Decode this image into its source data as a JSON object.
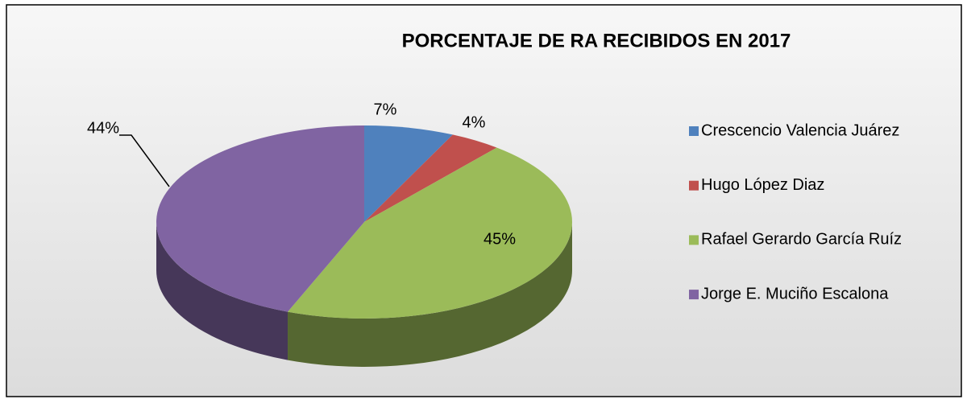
{
  "chart_data": {
    "type": "pie3d",
    "title": "PORCENTAJE DE RA RECIBIDOS EN 2017",
    "categories": [
      "Crescencio Valencia Juárez",
      "Hugo López Diaz",
      "Rafael Gerardo García Ruíz",
      "Jorge E. Muciño Escalona"
    ],
    "values": [
      7,
      4,
      45,
      44
    ],
    "value_labels": [
      "7%",
      "4%",
      "45%",
      "44%"
    ],
    "colors": [
      "#4f81bd",
      "#c0504d",
      "#9bbb59",
      "#8064a2"
    ],
    "legend": "right"
  }
}
